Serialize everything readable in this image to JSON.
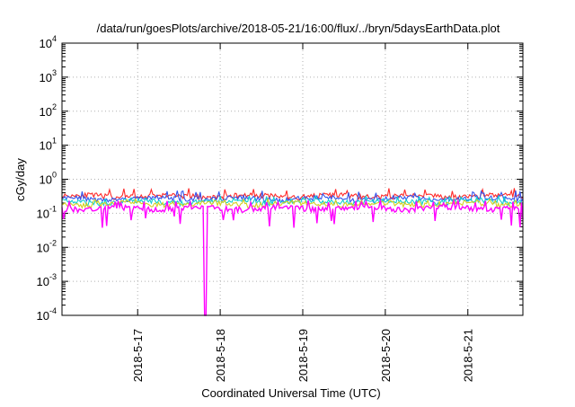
{
  "chart_data": {
    "type": "line",
    "title": "/data/run/goesPlots/archive/2018-05-21/16:00/flux/../bryn/5daysEarthData.plot",
    "xlabel": "Coordinated Universal Time (UTC)",
    "ylabel": "cGy/day",
    "yscale": "log",
    "ylim": [
      0.0001,
      10000
    ],
    "xlim": [
      "2018-05-16 02:00",
      "2018-05-21 16:00"
    ],
    "grid": true,
    "x_ticks": [
      "2018-5-17",
      "2018-5-18",
      "2018-5-19",
      "2018-5-20",
      "2018-5-21"
    ],
    "y_ticks": [
      {
        "base": "10",
        "exp": "-4",
        "value": 0.0001
      },
      {
        "base": "10",
        "exp": "-3",
        "value": 0.001
      },
      {
        "base": "10",
        "exp": "-2",
        "value": 0.01
      },
      {
        "base": "10",
        "exp": "-1",
        "value": 0.1
      },
      {
        "base": "10",
        "exp": "0",
        "value": 1
      },
      {
        "base": "10",
        "exp": "1",
        "value": 10
      },
      {
        "base": "10",
        "exp": "2",
        "value": 100
      },
      {
        "base": "10",
        "exp": "3",
        "value": 1000
      },
      {
        "base": "10",
        "exp": "4",
        "value": 10000
      }
    ],
    "series": [
      {
        "color": "#ff2a2a",
        "base": 0.32,
        "peak": 0.5
      },
      {
        "color": "#3355ee",
        "base": 0.27,
        "peak": 0.42
      },
      {
        "color": "#10d0d0",
        "base": 0.22,
        "peak": 0.3
      },
      {
        "color": "#d4d020",
        "base": 0.19,
        "peak": 0.24
      },
      {
        "color": "#ff00ff",
        "base": 0.14,
        "peak": 0.22,
        "min": 0.03
      }
    ],
    "dropout": {
      "x": "2018-05-17 19:40",
      "series_color": "#ff00ff",
      "value": 0.0001
    }
  }
}
